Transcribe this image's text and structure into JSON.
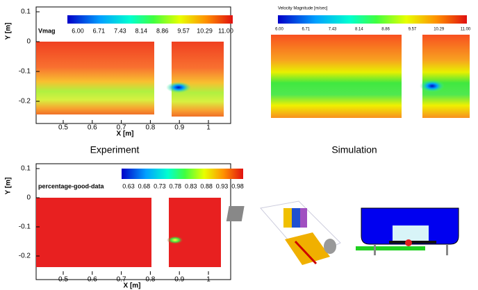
{
  "experiment_velocity": {
    "y_label": "Y [m]",
    "x_label": "X [m]",
    "yticks": [
      "0.1",
      "0",
      "-0.1",
      "-0.2"
    ],
    "xticks": [
      "0.5",
      "0.6",
      "0.7",
      "0.8",
      "0.9",
      "1"
    ],
    "colorbar_label": "Vmag",
    "colorbar_ticks": [
      "6.00",
      "6.71",
      "7.43",
      "8.14",
      "8.86",
      "9.57",
      "10.29",
      "11.00"
    ]
  },
  "simulation_velocity": {
    "colorbar_title": "Velocity Magnitude [m/sec]",
    "colorbar_ticks": [
      "6.00",
      "6.71",
      "7.43",
      "8.14",
      "8.86",
      "9.57",
      "10.29",
      "11.00"
    ]
  },
  "captions": [
    "Experiment",
    "Simulation"
  ],
  "experiment_good_data": {
    "y_label": "Y [m]",
    "x_label": "X [m]",
    "yticks": [
      "0.1",
      "0",
      "-0.1",
      "-0.2"
    ],
    "xticks": [
      "0.5",
      "0.6",
      "0.7",
      "0.8",
      "0.9",
      "1"
    ],
    "colorbar_label": "percentage-good-data",
    "colorbar_ticks": [
      "0.63",
      "0.68",
      "0.73",
      "0.78",
      "0.83",
      "0.88",
      "0.93",
      "0.98"
    ]
  }
}
